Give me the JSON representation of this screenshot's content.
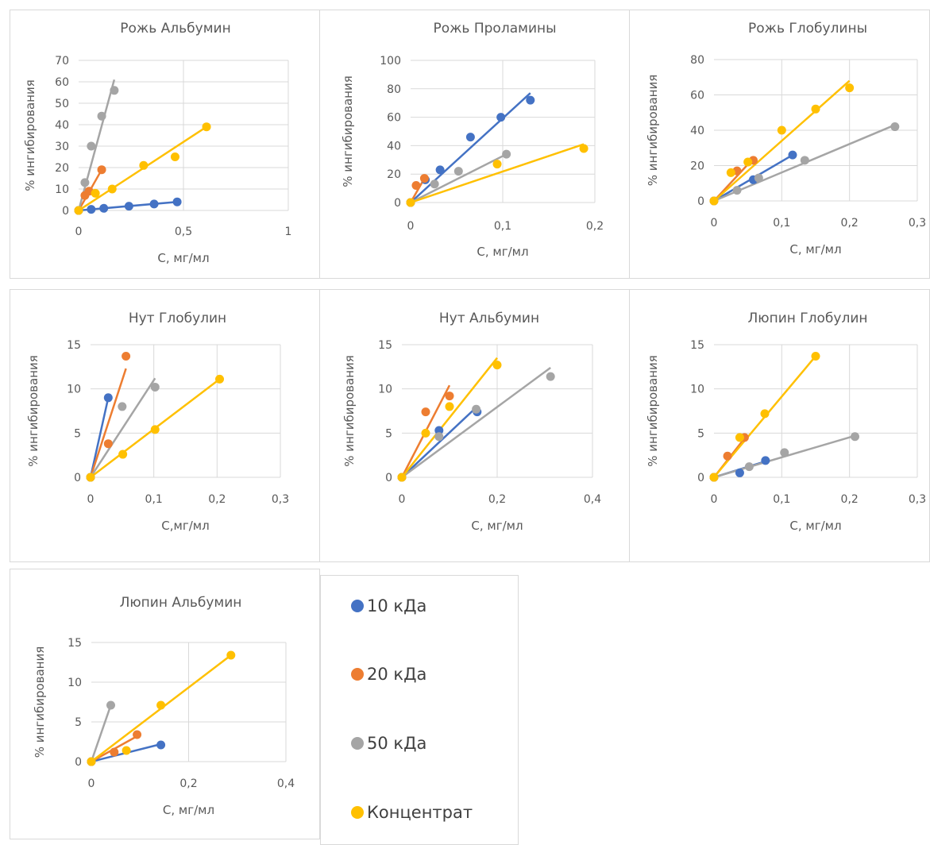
{
  "colors": {
    "s10": "#4472C4",
    "s20": "#ED7D31",
    "s50": "#A5A5A5",
    "sconc": "#FFC000",
    "grid": "#d9d9d9",
    "text": "#595959"
  },
  "legend": {
    "items": [
      {
        "label": "10 кДа",
        "color": "#4472C4"
      },
      {
        "label": "20 кДа",
        "color": "#ED7D31"
      },
      {
        "label": "50 кДа",
        "color": "#A5A5A5"
      },
      {
        "label": "Концентрат",
        "color": "#FFC000"
      }
    ]
  },
  "chart_data": [
    {
      "type": "scatter",
      "title": "Рожь Альбумин",
      "xlabel": "C, мг/мл",
      "ylabel": "% ингибирования",
      "xlim": [
        0,
        1
      ],
      "ylim": [
        0,
        70
      ],
      "xticks": [
        0,
        0.5,
        1
      ],
      "xtick_labels": [
        "0",
        "0,5",
        "1"
      ],
      "yticks": [
        0,
        10,
        20,
        30,
        40,
        50,
        60,
        70
      ],
      "ytick_labels": [
        "0",
        "10",
        "20",
        "30",
        "40",
        "50",
        "60",
        "70"
      ],
      "series": [
        {
          "name": "10 кДа",
          "color": "#4472C4",
          "x": [
            0,
            0.06,
            0.12,
            0.24,
            0.36,
            0.47
          ],
          "y": [
            0,
            0.5,
            1,
            2,
            3,
            4
          ],
          "trend": [
            0,
            0.47,
            0,
            4
          ]
        },
        {
          "name": "20 кДа",
          "color": "#ED7D31",
          "x": [
            0,
            0.03,
            0.05,
            0.11
          ],
          "y": [
            0,
            7,
            9,
            19
          ],
          "trend": [
            0,
            0.11,
            0,
            19
          ]
        },
        {
          "name": "50 кДа",
          "color": "#A5A5A5",
          "x": [
            0,
            0.03,
            0.06,
            0.11,
            0.17
          ],
          "y": [
            0,
            13,
            30,
            44,
            56
          ],
          "trend": [
            0,
            0.17,
            0,
            61
          ]
        },
        {
          "name": "Концентрат",
          "color": "#FFC000",
          "x": [
            0,
            0.08,
            0.16,
            0.31,
            0.46,
            0.61
          ],
          "y": [
            0,
            8,
            10,
            21,
            25,
            39
          ],
          "trend": [
            0,
            0.61,
            0,
            39
          ]
        }
      ]
    },
    {
      "type": "scatter",
      "title": "Рожь Проламины",
      "xlabel": "C, мг/мл",
      "ylabel": "% ингибирования",
      "xlim": [
        0,
        0.2
      ],
      "ylim": [
        0,
        100
      ],
      "xticks": [
        0,
        0.1,
        0.2
      ],
      "xtick_labels": [
        "0",
        "0,1",
        "0,2"
      ],
      "yticks": [
        0,
        20,
        40,
        60,
        80,
        100
      ],
      "ytick_labels": [
        "0",
        "20",
        "40",
        "60",
        "80",
        "100"
      ],
      "series": [
        {
          "name": "10 кДа",
          "color": "#4472C4",
          "x": [
            0,
            0.016,
            0.032,
            0.065,
            0.098,
            0.13
          ],
          "y": [
            0,
            16,
            23,
            46,
            60,
            72
          ],
          "trend": [
            0,
            0.13,
            0,
            77
          ]
        },
        {
          "name": "20 кДа",
          "color": "#ED7D31",
          "x": [
            0,
            0.006,
            0.015
          ],
          "y": [
            0,
            12,
            17
          ],
          "trend": [
            0,
            0.015,
            0,
            17
          ]
        },
        {
          "name": "50 кДа",
          "color": "#A5A5A5",
          "x": [
            0,
            0.026,
            0.052,
            0.104
          ],
          "y": [
            0,
            13,
            22,
            34
          ],
          "trend": [
            0,
            0.104,
            0,
            34
          ]
        },
        {
          "name": "Концентрат",
          "color": "#FFC000",
          "x": [
            0,
            0.094,
            0.188
          ],
          "y": [
            0,
            27,
            38
          ],
          "trend": [
            0,
            0.188,
            0,
            41
          ]
        }
      ]
    },
    {
      "type": "scatter",
      "title": "Рожь Глобулины",
      "xlabel": "C, мг/мл",
      "ylabel": "% ингибирования",
      "xlim": [
        0,
        0.3
      ],
      "ylim": [
        0,
        80
      ],
      "xticks": [
        0,
        0.1,
        0.2,
        0.3
      ],
      "xtick_labels": [
        "0",
        "0,1",
        "0,2",
        "0,3"
      ],
      "yticks": [
        0,
        20,
        40,
        60,
        80
      ],
      "ytick_labels": [
        "0",
        "20",
        "40",
        "60",
        "80"
      ],
      "series": [
        {
          "name": "10 кДа",
          "color": "#4472C4",
          "x": [
            0,
            0.058,
            0.116
          ],
          "y": [
            0,
            12,
            26
          ],
          "trend": [
            0,
            0.116,
            0,
            26
          ]
        },
        {
          "name": "20 кДа",
          "color": "#ED7D31",
          "x": [
            0,
            0.034,
            0.058
          ],
          "y": [
            0,
            17,
            23
          ],
          "trend": [
            0,
            0.058,
            0,
            24
          ]
        },
        {
          "name": "50 кДа",
          "color": "#A5A5A5",
          "x": [
            0,
            0.034,
            0.066,
            0.134,
            0.267
          ],
          "y": [
            0,
            6,
            13,
            23,
            42
          ],
          "trend": [
            0,
            0.267,
            0,
            43
          ]
        },
        {
          "name": "Концентрат",
          "color": "#FFC000",
          "x": [
            0,
            0.025,
            0.05,
            0.1,
            0.15,
            0.2
          ],
          "y": [
            0,
            16,
            22,
            40,
            52,
            64
          ],
          "trend": [
            0,
            0.2,
            0,
            68
          ]
        }
      ]
    },
    {
      "type": "scatter",
      "title": "Нут Глобулин",
      "xlabel": "C,мг/мл",
      "ylabel": "% ингибирования",
      "xlim": [
        0,
        0.3
      ],
      "ylim": [
        0,
        15
      ],
      "xticks": [
        0,
        0.1,
        0.2,
        0.3
      ],
      "xtick_labels": [
        "0",
        "0,1",
        "0,2",
        "0,3"
      ],
      "yticks": [
        0,
        5,
        10,
        15
      ],
      "ytick_labels": [
        "0",
        "5",
        "10",
        "15"
      ],
      "series": [
        {
          "name": "10 кДа",
          "color": "#4472C4",
          "x": [
            0,
            0.028
          ],
          "y": [
            0,
            9
          ],
          "trend": [
            0,
            0.028,
            0,
            9
          ]
        },
        {
          "name": "20 кДа",
          "color": "#ED7D31",
          "x": [
            0,
            0.028,
            0.056
          ],
          "y": [
            0,
            3.8,
            13.7
          ],
          "trend": [
            0,
            0.056,
            0,
            12.3
          ]
        },
        {
          "name": "50 кДа",
          "color": "#A5A5A5",
          "x": [
            0,
            0.05,
            0.102
          ],
          "y": [
            0,
            8,
            10.2
          ],
          "trend": [
            0,
            0.102,
            0,
            11.2
          ]
        },
        {
          "name": "Концентрат",
          "color": "#FFC000",
          "x": [
            0,
            0.051,
            0.102,
            0.204
          ],
          "y": [
            0,
            2.6,
            5.4,
            11.1
          ],
          "trend": [
            0,
            0.204,
            0,
            11.1
          ]
        }
      ]
    },
    {
      "type": "scatter",
      "title": "Нут Альбумин",
      "xlabel": "C, мг/мл",
      "ylabel": "% ингибирования",
      "xlim": [
        0,
        0.4
      ],
      "ylim": [
        0,
        15
      ],
      "xticks": [
        0,
        0.2,
        0.4
      ],
      "xtick_labels": [
        "0",
        "0,2",
        "0,4"
      ],
      "yticks": [
        0,
        5,
        10,
        15
      ],
      "ytick_labels": [
        "0",
        "5",
        "10",
        "15"
      ],
      "series": [
        {
          "name": "10 кДа",
          "color": "#4472C4",
          "x": [
            0,
            0.078,
            0.158
          ],
          "y": [
            0,
            5.3,
            7.4
          ],
          "trend": [
            0,
            0.158,
            0,
            8
          ]
        },
        {
          "name": "20 кДа",
          "color": "#ED7D31",
          "x": [
            0,
            0.05,
            0.1
          ],
          "y": [
            0,
            7.4,
            9.2
          ],
          "trend": [
            0,
            0.1,
            0,
            10.4
          ]
        },
        {
          "name": "50 кДа",
          "color": "#A5A5A5",
          "x": [
            0,
            0.078,
            0.156,
            0.312
          ],
          "y": [
            0,
            4.6,
            7.7,
            11.4
          ],
          "trend": [
            0,
            0.312,
            0,
            12.4
          ]
        },
        {
          "name": "Концентрат",
          "color": "#FFC000",
          "x": [
            0,
            0.05,
            0.1,
            0.2
          ],
          "y": [
            0,
            5,
            8,
            12.7
          ],
          "trend": [
            0,
            0.2,
            0,
            13.5
          ]
        }
      ]
    },
    {
      "type": "scatter",
      "title": "Люпин Глобулин",
      "xlabel": "C, мг/мл",
      "ylabel": "% ингибирования",
      "xlim": [
        0,
        0.3
      ],
      "ylim": [
        0,
        15
      ],
      "xticks": [
        0,
        0.1,
        0.2,
        0.3
      ],
      "xtick_labels": [
        "0",
        "0,1",
        "0,2",
        "0,3"
      ],
      "yticks": [
        0,
        5,
        10,
        15
      ],
      "ytick_labels": [
        "0",
        "5",
        "10",
        "15"
      ],
      "series": [
        {
          "name": "10 кДа",
          "color": "#4472C4",
          "x": [
            0,
            0.038,
            0.076
          ],
          "y": [
            0,
            0.5,
            1.9
          ],
          "trend": [
            0,
            0.076,
            0,
            1.8
          ]
        },
        {
          "name": "20 кДа",
          "color": "#ED7D31",
          "x": [
            0,
            0.02,
            0.045
          ],
          "y": [
            0,
            2.4,
            4.5
          ],
          "trend": [
            0,
            0.045,
            0,
            4.4
          ]
        },
        {
          "name": "50 кДа",
          "color": "#A5A5A5",
          "x": [
            0,
            0.052,
            0.104,
            0.208
          ],
          "y": [
            0,
            1.2,
            2.8,
            4.6
          ],
          "trend": [
            0,
            0.208,
            0,
            4.7
          ]
        },
        {
          "name": "Концентрат",
          "color": "#FFC000",
          "x": [
            0,
            0.038,
            0.075,
            0.15
          ],
          "y": [
            0,
            4.5,
            7.2,
            13.7
          ],
          "trend": [
            0,
            0.15,
            0,
            13.7
          ]
        }
      ]
    },
    {
      "type": "scatter",
      "title": "Люпин Альбумин",
      "xlabel": "C, мг/мл",
      "ylabel": "% ингибирования",
      "xlim": [
        0,
        0.4
      ],
      "ylim": [
        0,
        15
      ],
      "xticks": [
        0,
        0.2,
        0.4
      ],
      "xtick_labels": [
        "0",
        "0,2",
        "0,4"
      ],
      "yticks": [
        0,
        5,
        10,
        15
      ],
      "ytick_labels": [
        "0",
        "5",
        "10",
        "15"
      ],
      "series": [
        {
          "name": "10 кДа",
          "color": "#4472C4",
          "x": [
            0,
            0.143
          ],
          "y": [
            0,
            2.1
          ],
          "trend": [
            0,
            0.143,
            0,
            2.2
          ]
        },
        {
          "name": "20 кДа",
          "color": "#ED7D31",
          "x": [
            0,
            0.047,
            0.094
          ],
          "y": [
            0,
            1.2,
            3.4
          ],
          "trend": [
            0,
            0.094,
            0,
            3.2
          ]
        },
        {
          "name": "50 кДа",
          "color": "#A5A5A5",
          "x": [
            0,
            0.04
          ],
          "y": [
            0,
            7.1
          ],
          "trend": [
            0,
            0.04,
            0,
            7.1
          ]
        },
        {
          "name": "Концентрат",
          "color": "#FFC000",
          "x": [
            0,
            0.072,
            0.143,
            0.287
          ],
          "y": [
            0,
            1.4,
            7.1,
            13.4
          ],
          "trend": [
            0,
            0.287,
            0,
            13.4
          ]
        }
      ]
    }
  ]
}
